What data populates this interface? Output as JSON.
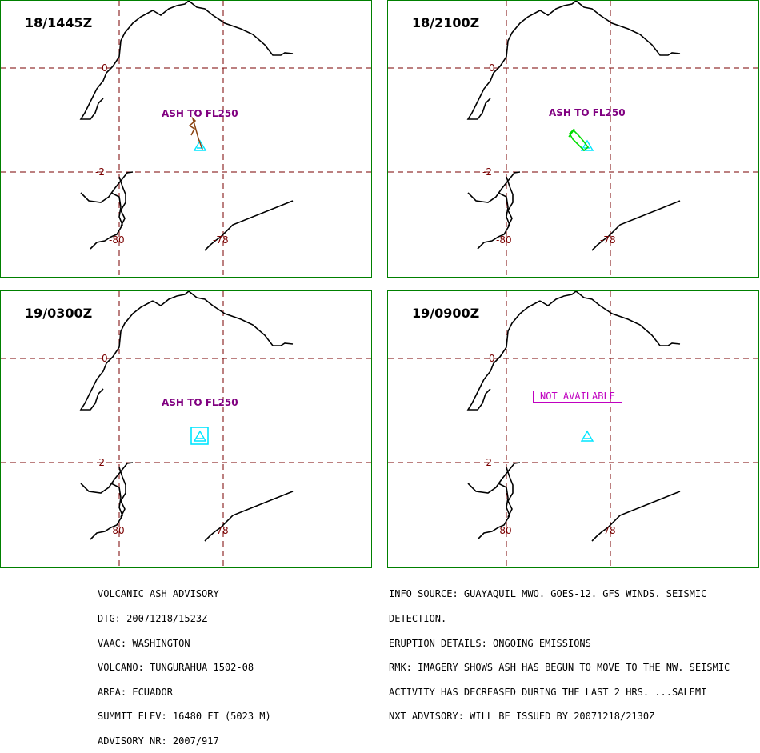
{
  "panels": [
    {
      "time": "18/1445Z",
      "ash_label": "ASH TO FL250",
      "ash_color": "#8B4513",
      "not_available": ""
    },
    {
      "time": "18/2100Z",
      "ash_label": "ASH TO FL250",
      "ash_color": "#00dd00",
      "not_available": ""
    },
    {
      "time": "19/0300Z",
      "ash_label": "ASH TO FL250",
      "ash_color": "#00e5ff",
      "not_available": ""
    },
    {
      "time": "19/0900Z",
      "ash_label": "",
      "ash_color": "",
      "not_available": "NOT AVAILABLE"
    }
  ],
  "grid": {
    "lat_labels": [
      "0",
      "-2"
    ],
    "lon_labels": [
      "-80",
      "-78"
    ]
  },
  "colors": {
    "panel_border": "#008000",
    "grid": "#7a0000",
    "coast": "#000000",
    "volcano": "#00e5ff",
    "label": "#800080",
    "not_available": "#c000c0"
  },
  "advisory_left": [
    "VOLCANIC ASH ADVISORY",
    "DTG: 20071218/1523Z",
    "VAAC: WASHINGTON",
    "VOLCANO: TUNGURAHUA 1502-08",
    "AREA: ECUADOR",
    "SUMMIT ELEV: 16480 FT (5023 M)",
    "ADVISORY NR: 2007/917"
  ],
  "advisory_right": [
    "INFO SOURCE: GUAYAQUIL MWO. GOES-12. GFS WINDS. SEISMIC",
    "DETECTION.",
    "ERUPTION DETAILS: ONGOING EMISSIONS",
    "RMK: IMAGERY SHOWS ASH HAS BEGUN TO MOVE TO THE NW. SEISMIC",
    "ACTIVITY HAS DECREASED DURING THE LAST 2 HRS. ...SALEMI",
    "NXT ADVISORY: WILL BE ISSUED BY 20071218/2130Z"
  ]
}
